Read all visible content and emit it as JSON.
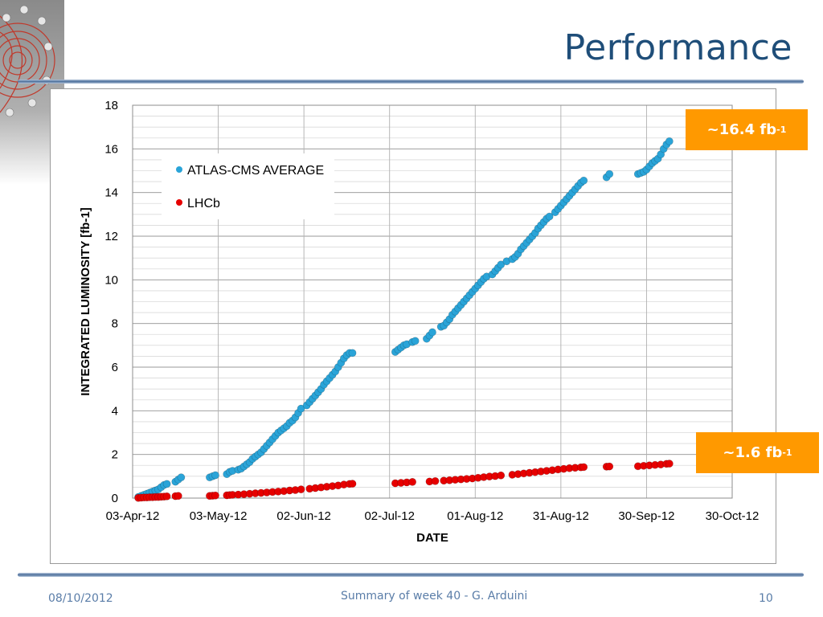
{
  "slide": {
    "title": "Performance",
    "footer_date": "08/10/2012",
    "footer_center": "Summary of week 40 - G. Arduini",
    "page_number": "10"
  },
  "callouts": {
    "atlas": {
      "prefix": "~16.4 fb",
      "sup": "-1"
    },
    "lhcb": {
      "prefix": "~1.6 fb",
      "sup": "-1"
    }
  },
  "colors": {
    "atlas": "#2aa4d8",
    "lhcb": "#e60000",
    "callout": "#ff9900",
    "title": "#1f4e79"
  },
  "chart_data": {
    "type": "scatter",
    "xlabel": "DATE",
    "ylabel": "INTEGRATED LUMINOSITY [fb-1]",
    "ylim": [
      0,
      18
    ],
    "yticks": [
      0,
      2,
      4,
      6,
      8,
      10,
      12,
      14,
      16,
      18
    ],
    "xlim": [
      "2012-04-03",
      "2012-10-30"
    ],
    "xtick_labels": [
      "03-Apr-12",
      "03-May-12",
      "02-Jun-12",
      "02-Jul-12",
      "01-Aug-12",
      "31-Aug-12",
      "30-Sep-12",
      "30-Oct-12"
    ],
    "grid": true,
    "legend_position": "top-left",
    "series": [
      {
        "name": "ATLAS-CMS AVERAGE",
        "color": "#2aa4d8",
        "points": [
          [
            "2012-04-05",
            0.05
          ],
          [
            "2012-04-06",
            0.1
          ],
          [
            "2012-04-07",
            0.15
          ],
          [
            "2012-04-08",
            0.2
          ],
          [
            "2012-04-09",
            0.25
          ],
          [
            "2012-04-10",
            0.3
          ],
          [
            "2012-04-11",
            0.35
          ],
          [
            "2012-04-12",
            0.4
          ],
          [
            "2012-04-13",
            0.5
          ],
          [
            "2012-04-14",
            0.6
          ],
          [
            "2012-04-15",
            0.65
          ],
          [
            "2012-04-18",
            0.75
          ],
          [
            "2012-04-19",
            0.85
          ],
          [
            "2012-04-20",
            0.95
          ],
          [
            "2012-04-30",
            0.95
          ],
          [
            "2012-05-01",
            1.0
          ],
          [
            "2012-05-02",
            1.05
          ],
          [
            "2012-05-06",
            1.1
          ],
          [
            "2012-05-07",
            1.2
          ],
          [
            "2012-05-08",
            1.25
          ],
          [
            "2012-05-10",
            1.3
          ],
          [
            "2012-05-11",
            1.35
          ],
          [
            "2012-05-12",
            1.45
          ],
          [
            "2012-05-13",
            1.55
          ],
          [
            "2012-05-14",
            1.65
          ],
          [
            "2012-05-15",
            1.8
          ],
          [
            "2012-05-16",
            1.9
          ],
          [
            "2012-05-17",
            2.0
          ],
          [
            "2012-05-18",
            2.1
          ],
          [
            "2012-05-19",
            2.25
          ],
          [
            "2012-05-20",
            2.4
          ],
          [
            "2012-05-21",
            2.55
          ],
          [
            "2012-05-22",
            2.7
          ],
          [
            "2012-05-23",
            2.85
          ],
          [
            "2012-05-24",
            3.0
          ],
          [
            "2012-05-25",
            3.1
          ],
          [
            "2012-05-26",
            3.2
          ],
          [
            "2012-05-27",
            3.3
          ],
          [
            "2012-05-28",
            3.45
          ],
          [
            "2012-05-29",
            3.55
          ],
          [
            "2012-05-30",
            3.7
          ],
          [
            "2012-05-31",
            3.9
          ],
          [
            "2012-06-01",
            4.1
          ],
          [
            "2012-06-03",
            4.25
          ],
          [
            "2012-06-04",
            4.4
          ],
          [
            "2012-06-05",
            4.55
          ],
          [
            "2012-06-06",
            4.7
          ],
          [
            "2012-06-07",
            4.85
          ],
          [
            "2012-06-08",
            5.0
          ],
          [
            "2012-06-09",
            5.2
          ],
          [
            "2012-06-10",
            5.35
          ],
          [
            "2012-06-11",
            5.5
          ],
          [
            "2012-06-12",
            5.65
          ],
          [
            "2012-06-13",
            5.8
          ],
          [
            "2012-06-14",
            6.0
          ],
          [
            "2012-06-15",
            6.2
          ],
          [
            "2012-06-16",
            6.4
          ],
          [
            "2012-06-17",
            6.55
          ],
          [
            "2012-06-18",
            6.65
          ],
          [
            "2012-06-19",
            6.65
          ],
          [
            "2012-07-04",
            6.7
          ],
          [
            "2012-07-05",
            6.8
          ],
          [
            "2012-07-06",
            6.9
          ],
          [
            "2012-07-07",
            7.0
          ],
          [
            "2012-07-08",
            7.05
          ],
          [
            "2012-07-10",
            7.15
          ],
          [
            "2012-07-11",
            7.2
          ],
          [
            "2012-07-15",
            7.3
          ],
          [
            "2012-07-16",
            7.45
          ],
          [
            "2012-07-17",
            7.6
          ],
          [
            "2012-07-20",
            7.85
          ],
          [
            "2012-07-21",
            7.9
          ],
          [
            "2012-07-22",
            8.05
          ],
          [
            "2012-07-23",
            8.2
          ],
          [
            "2012-07-24",
            8.4
          ],
          [
            "2012-07-25",
            8.55
          ],
          [
            "2012-07-26",
            8.7
          ],
          [
            "2012-07-27",
            8.85
          ],
          [
            "2012-07-28",
            9.0
          ],
          [
            "2012-07-29",
            9.15
          ],
          [
            "2012-07-30",
            9.3
          ],
          [
            "2012-07-31",
            9.45
          ],
          [
            "2012-08-01",
            9.6
          ],
          [
            "2012-08-02",
            9.75
          ],
          [
            "2012-08-03",
            9.9
          ],
          [
            "2012-08-04",
            10.05
          ],
          [
            "2012-08-05",
            10.15
          ],
          [
            "2012-08-07",
            10.25
          ],
          [
            "2012-08-08",
            10.4
          ],
          [
            "2012-08-09",
            10.55
          ],
          [
            "2012-08-10",
            10.7
          ],
          [
            "2012-08-12",
            10.85
          ],
          [
            "2012-08-14",
            10.95
          ],
          [
            "2012-08-15",
            11.05
          ],
          [
            "2012-08-16",
            11.2
          ],
          [
            "2012-08-17",
            11.4
          ],
          [
            "2012-08-18",
            11.55
          ],
          [
            "2012-08-19",
            11.7
          ],
          [
            "2012-08-20",
            11.85
          ],
          [
            "2012-08-21",
            12.0
          ],
          [
            "2012-08-22",
            12.15
          ],
          [
            "2012-08-23",
            12.35
          ],
          [
            "2012-08-24",
            12.5
          ],
          [
            "2012-08-25",
            12.65
          ],
          [
            "2012-08-26",
            12.8
          ],
          [
            "2012-08-27",
            12.9
          ],
          [
            "2012-08-29",
            13.1
          ],
          [
            "2012-08-30",
            13.25
          ],
          [
            "2012-08-31",
            13.4
          ],
          [
            "2012-09-01",
            13.55
          ],
          [
            "2012-09-02",
            13.7
          ],
          [
            "2012-09-03",
            13.85
          ],
          [
            "2012-09-04",
            14.0
          ],
          [
            "2012-09-05",
            14.15
          ],
          [
            "2012-09-06",
            14.3
          ],
          [
            "2012-09-07",
            14.45
          ],
          [
            "2012-09-08",
            14.55
          ],
          [
            "2012-09-16",
            14.7
          ],
          [
            "2012-09-17",
            14.85
          ],
          [
            "2012-09-27",
            14.85
          ],
          [
            "2012-09-28",
            14.9
          ],
          [
            "2012-09-29",
            14.95
          ],
          [
            "2012-09-30",
            15.05
          ],
          [
            "2012-10-01",
            15.2
          ],
          [
            "2012-10-02",
            15.35
          ],
          [
            "2012-10-03",
            15.45
          ],
          [
            "2012-10-04",
            15.55
          ],
          [
            "2012-10-05",
            15.75
          ],
          [
            "2012-10-06",
            16.0
          ],
          [
            "2012-10-07",
            16.2
          ],
          [
            "2012-10-08",
            16.35
          ]
        ]
      },
      {
        "name": "LHCb",
        "color": "#e60000",
        "points": [
          [
            "2012-04-05",
            0.01
          ],
          [
            "2012-04-06",
            0.02
          ],
          [
            "2012-04-07",
            0.03
          ],
          [
            "2012-04-08",
            0.03
          ],
          [
            "2012-04-09",
            0.04
          ],
          [
            "2012-04-10",
            0.04
          ],
          [
            "2012-04-11",
            0.05
          ],
          [
            "2012-04-12",
            0.05
          ],
          [
            "2012-04-13",
            0.06
          ],
          [
            "2012-04-14",
            0.07
          ],
          [
            "2012-04-15",
            0.08
          ],
          [
            "2012-04-18",
            0.09
          ],
          [
            "2012-04-19",
            0.1
          ],
          [
            "2012-04-30",
            0.1
          ],
          [
            "2012-05-01",
            0.11
          ],
          [
            "2012-05-02",
            0.12
          ],
          [
            "2012-05-06",
            0.13
          ],
          [
            "2012-05-07",
            0.14
          ],
          [
            "2012-05-08",
            0.15
          ],
          [
            "2012-05-10",
            0.16
          ],
          [
            "2012-05-12",
            0.18
          ],
          [
            "2012-05-14",
            0.2
          ],
          [
            "2012-05-16",
            0.22
          ],
          [
            "2012-05-18",
            0.24
          ],
          [
            "2012-05-20",
            0.26
          ],
          [
            "2012-05-22",
            0.28
          ],
          [
            "2012-05-24",
            0.3
          ],
          [
            "2012-05-26",
            0.32
          ],
          [
            "2012-05-28",
            0.35
          ],
          [
            "2012-05-30",
            0.37
          ],
          [
            "2012-06-01",
            0.4
          ],
          [
            "2012-06-04",
            0.43
          ],
          [
            "2012-06-06",
            0.46
          ],
          [
            "2012-06-08",
            0.49
          ],
          [
            "2012-06-10",
            0.52
          ],
          [
            "2012-06-12",
            0.55
          ],
          [
            "2012-06-14",
            0.58
          ],
          [
            "2012-06-16",
            0.62
          ],
          [
            "2012-06-18",
            0.65
          ],
          [
            "2012-06-19",
            0.66
          ],
          [
            "2012-07-04",
            0.68
          ],
          [
            "2012-07-06",
            0.7
          ],
          [
            "2012-07-08",
            0.72
          ],
          [
            "2012-07-10",
            0.74
          ],
          [
            "2012-07-16",
            0.76
          ],
          [
            "2012-07-18",
            0.78
          ],
          [
            "2012-07-21",
            0.8
          ],
          [
            "2012-07-23",
            0.82
          ],
          [
            "2012-07-25",
            0.84
          ],
          [
            "2012-07-27",
            0.86
          ],
          [
            "2012-07-29",
            0.88
          ],
          [
            "2012-07-31",
            0.9
          ],
          [
            "2012-08-02",
            0.93
          ],
          [
            "2012-08-04",
            0.96
          ],
          [
            "2012-08-06",
            0.99
          ],
          [
            "2012-08-08",
            1.01
          ],
          [
            "2012-08-10",
            1.04
          ],
          [
            "2012-08-14",
            1.07
          ],
          [
            "2012-08-16",
            1.1
          ],
          [
            "2012-08-18",
            1.13
          ],
          [
            "2012-08-20",
            1.16
          ],
          [
            "2012-08-22",
            1.19
          ],
          [
            "2012-08-24",
            1.22
          ],
          [
            "2012-08-26",
            1.25
          ],
          [
            "2012-08-28",
            1.28
          ],
          [
            "2012-08-30",
            1.31
          ],
          [
            "2012-09-01",
            1.34
          ],
          [
            "2012-09-03",
            1.37
          ],
          [
            "2012-09-05",
            1.39
          ],
          [
            "2012-09-07",
            1.41
          ],
          [
            "2012-09-08",
            1.42
          ],
          [
            "2012-09-16",
            1.44
          ],
          [
            "2012-09-17",
            1.45
          ],
          [
            "2012-09-27",
            1.46
          ],
          [
            "2012-09-29",
            1.48
          ],
          [
            "2012-10-01",
            1.5
          ],
          [
            "2012-10-03",
            1.52
          ],
          [
            "2012-10-05",
            1.54
          ],
          [
            "2012-10-07",
            1.57
          ],
          [
            "2012-10-08",
            1.58
          ]
        ]
      }
    ]
  }
}
